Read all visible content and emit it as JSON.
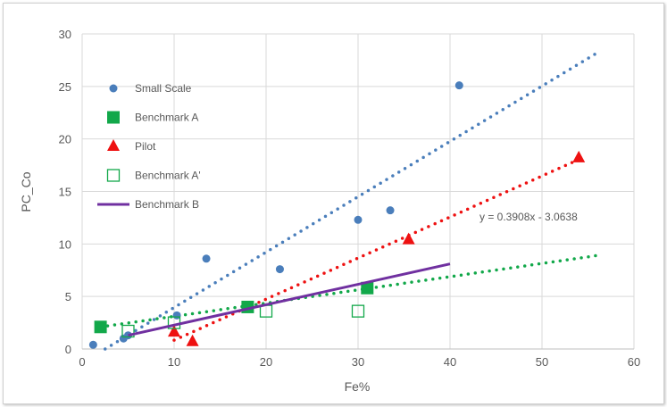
{
  "chart_data": {
    "type": "scatter",
    "title": "",
    "xlabel": "Fe%",
    "ylabel": "PC_Co",
    "xlim": [
      0,
      60
    ],
    "ylim": [
      0,
      30
    ],
    "xticks": [
      0,
      10,
      20,
      30,
      40,
      50,
      60
    ],
    "yticks": [
      0,
      5,
      10,
      15,
      20,
      25,
      30
    ],
    "grid": true,
    "legend_position": "top-left",
    "series": [
      {
        "name": "Small Scale",
        "marker": "circle",
        "color": "#4a7ebb",
        "x": [
          1.2,
          4.5,
          5,
          10.3,
          13.5,
          21.5,
          30,
          33.5,
          41
        ],
        "y": [
          0.4,
          1.0,
          1.3,
          3.2,
          8.6,
          7.6,
          12.3,
          13.2,
          25.1
        ],
        "trendline": {
          "x": [
            2.5,
            56
          ],
          "y": [
            0,
            28.2
          ]
        }
      },
      {
        "name": "Benchmark A",
        "marker": "square",
        "color": "#12a84a",
        "x": [
          2,
          18,
          31
        ],
        "y": [
          2.1,
          4.0,
          5.8
        ],
        "trendline": {
          "x": [
            2,
            56
          ],
          "y": [
            2.1,
            8.9
          ]
        }
      },
      {
        "name": "Pilot",
        "marker": "triangle",
        "color": "#ee1111",
        "x": [
          10,
          12,
          35.5,
          54
        ],
        "y": [
          1.6,
          0.7,
          10.4,
          18.2
        ],
        "trendline": {
          "x": [
            10,
            54
          ],
          "y": [
            0.84,
            18.04
          ]
        }
      },
      {
        "name": "Benchmark A'",
        "marker": "open-square",
        "color": "#12a84a",
        "x": [
          5,
          10,
          20,
          30
        ],
        "y": [
          1.7,
          2.5,
          3.6,
          3.6
        ]
      },
      {
        "name": "Benchmark B",
        "marker": "line",
        "color": "#7030a0",
        "x": [
          5,
          40
        ],
        "y": [
          1.3,
          8.1
        ]
      }
    ],
    "annotations": [
      "y = 0.3908x  - 3.0638"
    ]
  }
}
